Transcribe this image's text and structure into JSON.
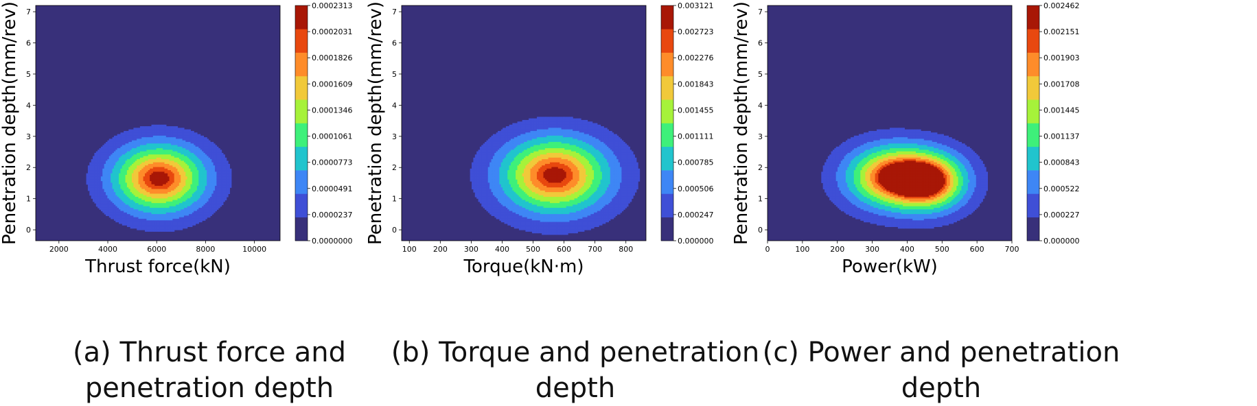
{
  "figure": {
    "colormap": [
      "#38307a",
      "#3f4fd6",
      "#3e86f5",
      "#21c4cd",
      "#3ef07a",
      "#a6f23a",
      "#f1c93a",
      "#fe8c2a",
      "#e8480f",
      "#a81706"
    ],
    "background_color": "#38307a"
  },
  "chart_data": [
    {
      "type": "contour",
      "caption": "(a) Thrust force and penetration depth",
      "xlabel": "Thrust force(kN)",
      "ylabel": "Penetration depth(mm/rev)",
      "xlim": [
        1050,
        11050
      ],
      "ylim": [
        -0.35,
        7.2
      ],
      "xticks": [
        2000,
        4000,
        6000,
        8000,
        10000
      ],
      "yticks": [
        0,
        1,
        2,
        3,
        4,
        5,
        6,
        7
      ],
      "colorbar_levels": [
        "0.0000000",
        "0.0000237",
        "0.0000491",
        "0.0000773",
        "0.0001061",
        "0.0001346",
        "0.0001609",
        "0.0001826",
        "0.0002031",
        "0.0002313"
      ],
      "peaks": [
        {
          "x": 6100,
          "y": 1.65,
          "sx": 1250,
          "sy": 0.72,
          "rot": -0.35,
          "w": 1.0
        }
      ]
    },
    {
      "type": "contour",
      "caption": "(b) Torque and penetration depth",
      "xlabel": "Torque(kN·m)",
      "ylabel": "Penetration depth(mm/rev)",
      "xlim": [
        75,
        865
      ],
      "ylim": [
        -0.35,
        7.2
      ],
      "xticks": [
        100,
        200,
        300,
        400,
        500,
        600,
        700,
        800
      ],
      "yticks": [
        0,
        1,
        2,
        3,
        4,
        5,
        6,
        7
      ],
      "colorbar_levels": [
        "0.000000",
        "0.000247",
        "0.000506",
        "0.000785",
        "0.001111",
        "0.001455",
        "0.001843",
        "0.002276",
        "0.002723",
        "0.003121"
      ],
      "peaks": [
        {
          "x": 570,
          "y": 1.75,
          "sx": 115,
          "sy": 0.8,
          "rot": 0.5,
          "w": 1.0
        }
      ]
    },
    {
      "type": "contour",
      "caption": "(c) Power and penetration depth",
      "xlabel": "Power(kW)",
      "ylabel": "Penetration depth(mm/rev)",
      "xlim": [
        0,
        700
      ],
      "ylim": [
        -0.35,
        7.2
      ],
      "xticks": [
        0,
        100,
        200,
        300,
        400,
        500,
        600,
        700
      ],
      "yticks": [
        0,
        1,
        2,
        3,
        4,
        5,
        6,
        7
      ],
      "colorbar_levels": [
        "0.000000",
        "0.000227",
        "0.000522",
        "0.000843",
        "0.001137",
        "0.001445",
        "0.001708",
        "0.001903",
        "0.002151",
        "0.002462"
      ],
      "peaks": [
        {
          "x": 355,
          "y": 1.7,
          "sx": 85,
          "sy": 0.65,
          "rot": 0.1,
          "w": 0.95
        },
        {
          "x": 465,
          "y": 1.55,
          "sx": 70,
          "sy": 0.6,
          "rot": 0.0,
          "w": 0.92
        }
      ]
    }
  ]
}
